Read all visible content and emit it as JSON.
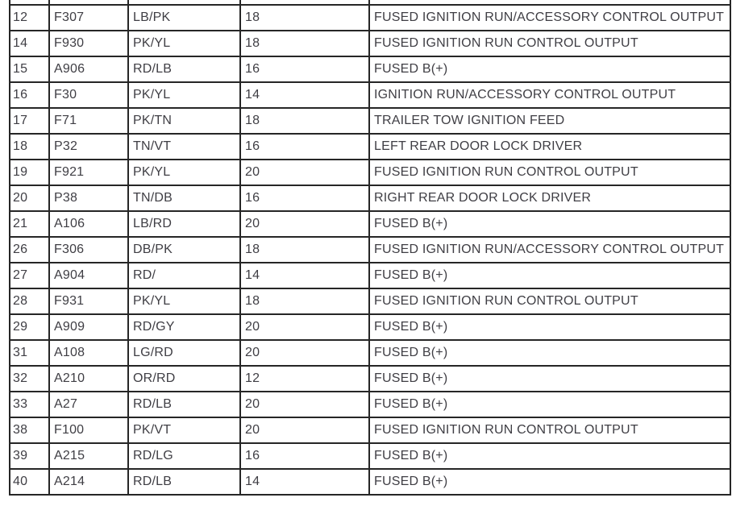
{
  "colors": {
    "grid": "#262626",
    "text": "#3f3e44",
    "background": "#ffffff"
  },
  "table": {
    "column_keys": [
      "pin",
      "circuit",
      "color",
      "gauge",
      "function"
    ],
    "rows": [
      {
        "pin": "12",
        "circuit": "F307",
        "color": "LB/PK",
        "gauge": "18",
        "function": "FUSED IGNITION RUN/ACCESSORY CONTROL OUTPUT"
      },
      {
        "pin": "14",
        "circuit": "F930",
        "color": "PK/YL",
        "gauge": "18",
        "function": "FUSED IGNITION RUN CONTROL OUTPUT"
      },
      {
        "pin": "15",
        "circuit": "A906",
        "color": "RD/LB",
        "gauge": "16",
        "function": "FUSED B(+)"
      },
      {
        "pin": "16",
        "circuit": "F30",
        "color": "PK/YL",
        "gauge": "14",
        "function": "IGNITION RUN/ACCESSORY CONTROL OUTPUT"
      },
      {
        "pin": "17",
        "circuit": "F71",
        "color": "PK/TN",
        "gauge": "18",
        "function": "TRAILER TOW IGNITION FEED"
      },
      {
        "pin": "18",
        "circuit": "P32",
        "color": "TN/VT",
        "gauge": "16",
        "function": "LEFT REAR DOOR LOCK DRIVER"
      },
      {
        "pin": "19",
        "circuit": "F921",
        "color": "PK/YL",
        "gauge": "20",
        "function": "FUSED IGNITION RUN CONTROL OUTPUT"
      },
      {
        "pin": "20",
        "circuit": "P38",
        "color": "TN/DB",
        "gauge": "16",
        "function": "RIGHT REAR DOOR LOCK DRIVER"
      },
      {
        "pin": "21",
        "circuit": "A106",
        "color": "LB/RD",
        "gauge": "20",
        "function": "FUSED B(+)"
      },
      {
        "pin": "26",
        "circuit": "F306",
        "color": "DB/PK",
        "gauge": "18",
        "function": "FUSED IGNITION RUN/ACCESSORY CONTROL OUTPUT"
      },
      {
        "pin": "27",
        "circuit": "A904",
        "color": "RD/",
        "gauge": "14",
        "function": "FUSED B(+)"
      },
      {
        "pin": "28",
        "circuit": "F931",
        "color": "PK/YL",
        "gauge": "18",
        "function": "FUSED IGNITION RUN CONTROL OUTPUT"
      },
      {
        "pin": "29",
        "circuit": "A909",
        "color": "RD/GY",
        "gauge": "20",
        "function": "FUSED B(+)"
      },
      {
        "pin": "31",
        "circuit": "A108",
        "color": "LG/RD",
        "gauge": "20",
        "function": "FUSED B(+)"
      },
      {
        "pin": "32",
        "circuit": "A210",
        "color": "OR/RD",
        "gauge": "12",
        "function": "FUSED B(+)"
      },
      {
        "pin": "33",
        "circuit": "A27",
        "color": "RD/LB",
        "gauge": "20",
        "function": "FUSED B(+)"
      },
      {
        "pin": "38",
        "circuit": "F100",
        "color": "PK/VT",
        "gauge": "20",
        "function": "FUSED IGNITION RUN CONTROL OUTPUT"
      },
      {
        "pin": "39",
        "circuit": "A215",
        "color": "RD/LG",
        "gauge": "16",
        "function": "FUSED B(+)"
      },
      {
        "pin": "40",
        "circuit": "A214",
        "color": "RD/LB",
        "gauge": "14",
        "function": "FUSED B(+)"
      }
    ]
  }
}
